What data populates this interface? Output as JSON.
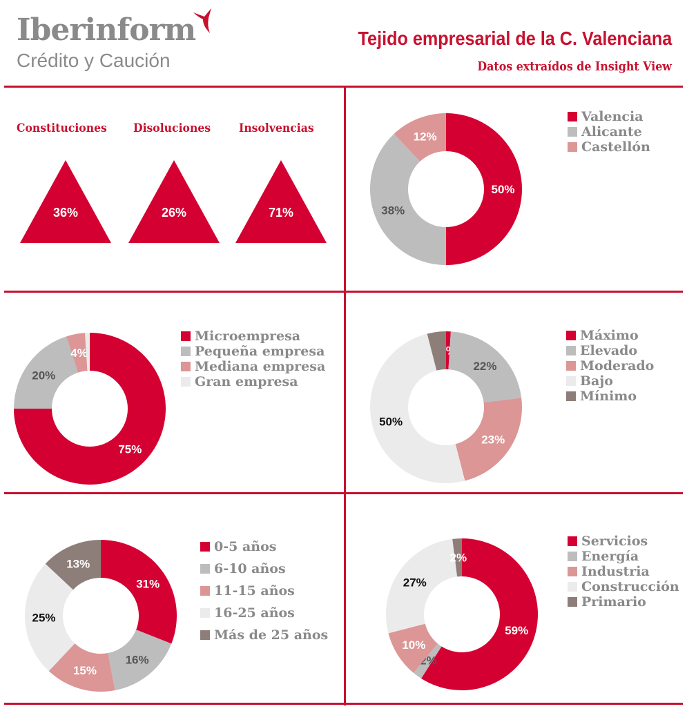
{
  "header": {
    "logo_name": "Iberinform",
    "logo_tagline": "Crédito y Caución",
    "title": "Tejido empresarial de la C. Valenciana",
    "subtitle": "Datos extraídos de Insight View"
  },
  "colors": {
    "red": "#d50032",
    "gray": "#bdbdbd",
    "pink": "#dc9696",
    "light": "#ebebeb",
    "brown": "#8e7e79",
    "text_red": "#c8102e"
  },
  "indicators": [
    {
      "label": "Constituciones",
      "value": "36%"
    },
    {
      "label": "Disoluciones",
      "value": "26%"
    },
    {
      "label": "Insolvencias",
      "value": "71%"
    }
  ],
  "chart_data": [
    {
      "type": "pie",
      "name": "provincia",
      "categories": [
        "Valencia",
        "Alicante",
        "Castellón"
      ],
      "values": [
        50,
        38,
        12
      ],
      "labels": [
        "50%",
        "38%",
        "12%"
      ],
      "colors": [
        "#d50032",
        "#bdbdbd",
        "#dc9696"
      ]
    },
    {
      "type": "pie",
      "name": "tamano",
      "categories": [
        "Microempresa",
        "Pequeña empresa",
        "Mediana empresa",
        "Gran empresa"
      ],
      "values": [
        75,
        20,
        4,
        1
      ],
      "labels": [
        "75%",
        "20%",
        "4%",
        ""
      ],
      "colors": [
        "#d50032",
        "#bdbdbd",
        "#dc9696",
        "#ebebeb"
      ]
    },
    {
      "type": "pie",
      "name": "riesgo",
      "categories": [
        "Máximo",
        "Elevado",
        "Moderado",
        "Bajo",
        "Mínimo"
      ],
      "values": [
        1,
        22,
        23,
        50,
        4
      ],
      "labels": [
        "1%",
        "22%",
        "23%",
        "50%",
        ""
      ],
      "colors": [
        "#d50032",
        "#bdbdbd",
        "#dc9696",
        "#ebebeb",
        "#8e7e79"
      ]
    },
    {
      "type": "pie",
      "name": "antiguedad",
      "categories": [
        "0-5 años",
        "6-10 años",
        "11-15 años",
        "16-25 años",
        "Más de 25 años"
      ],
      "values": [
        31,
        16,
        15,
        25,
        13
      ],
      "labels": [
        "31%",
        "16%",
        "15%",
        "25%",
        "13%"
      ],
      "colors": [
        "#d50032",
        "#bdbdbd",
        "#dc9696",
        "#ebebeb",
        "#8e7e79"
      ]
    },
    {
      "type": "pie",
      "name": "sector",
      "categories": [
        "Servicios",
        "Energía",
        "Industria",
        "Construcción",
        "Primario"
      ],
      "values": [
        59,
        2,
        10,
        27,
        2
      ],
      "labels": [
        "59%",
        "2%",
        "10%",
        "27%",
        "2%"
      ],
      "colors": [
        "#d50032",
        "#bdbdbd",
        "#dc9696",
        "#ebebeb",
        "#8e7e79"
      ]
    }
  ]
}
